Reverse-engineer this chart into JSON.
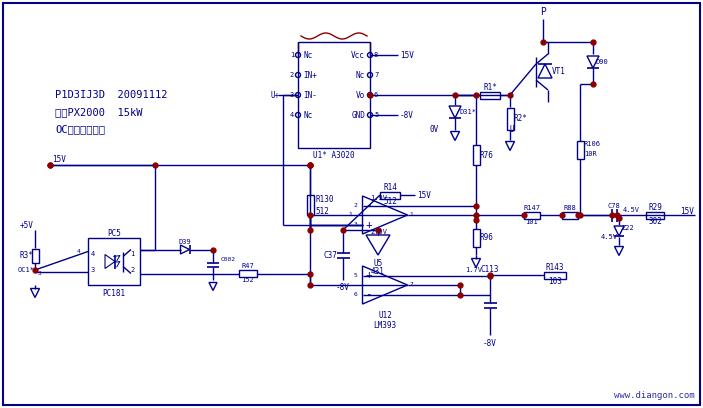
{
  "bg_color": "#ffffff",
  "line_color": "#00008B",
  "red_color": "#8B0000",
  "dot_color": "#8B0000",
  "text_color": "#00008B",
  "label_line1": "P1D3IJ3D  20091112",
  "label_line2": "欧瑞PX2000  15kW",
  "label_line3": "OC故障报警电路",
  "watermark": "www.diangon.com",
  "border_color": "#00008B"
}
